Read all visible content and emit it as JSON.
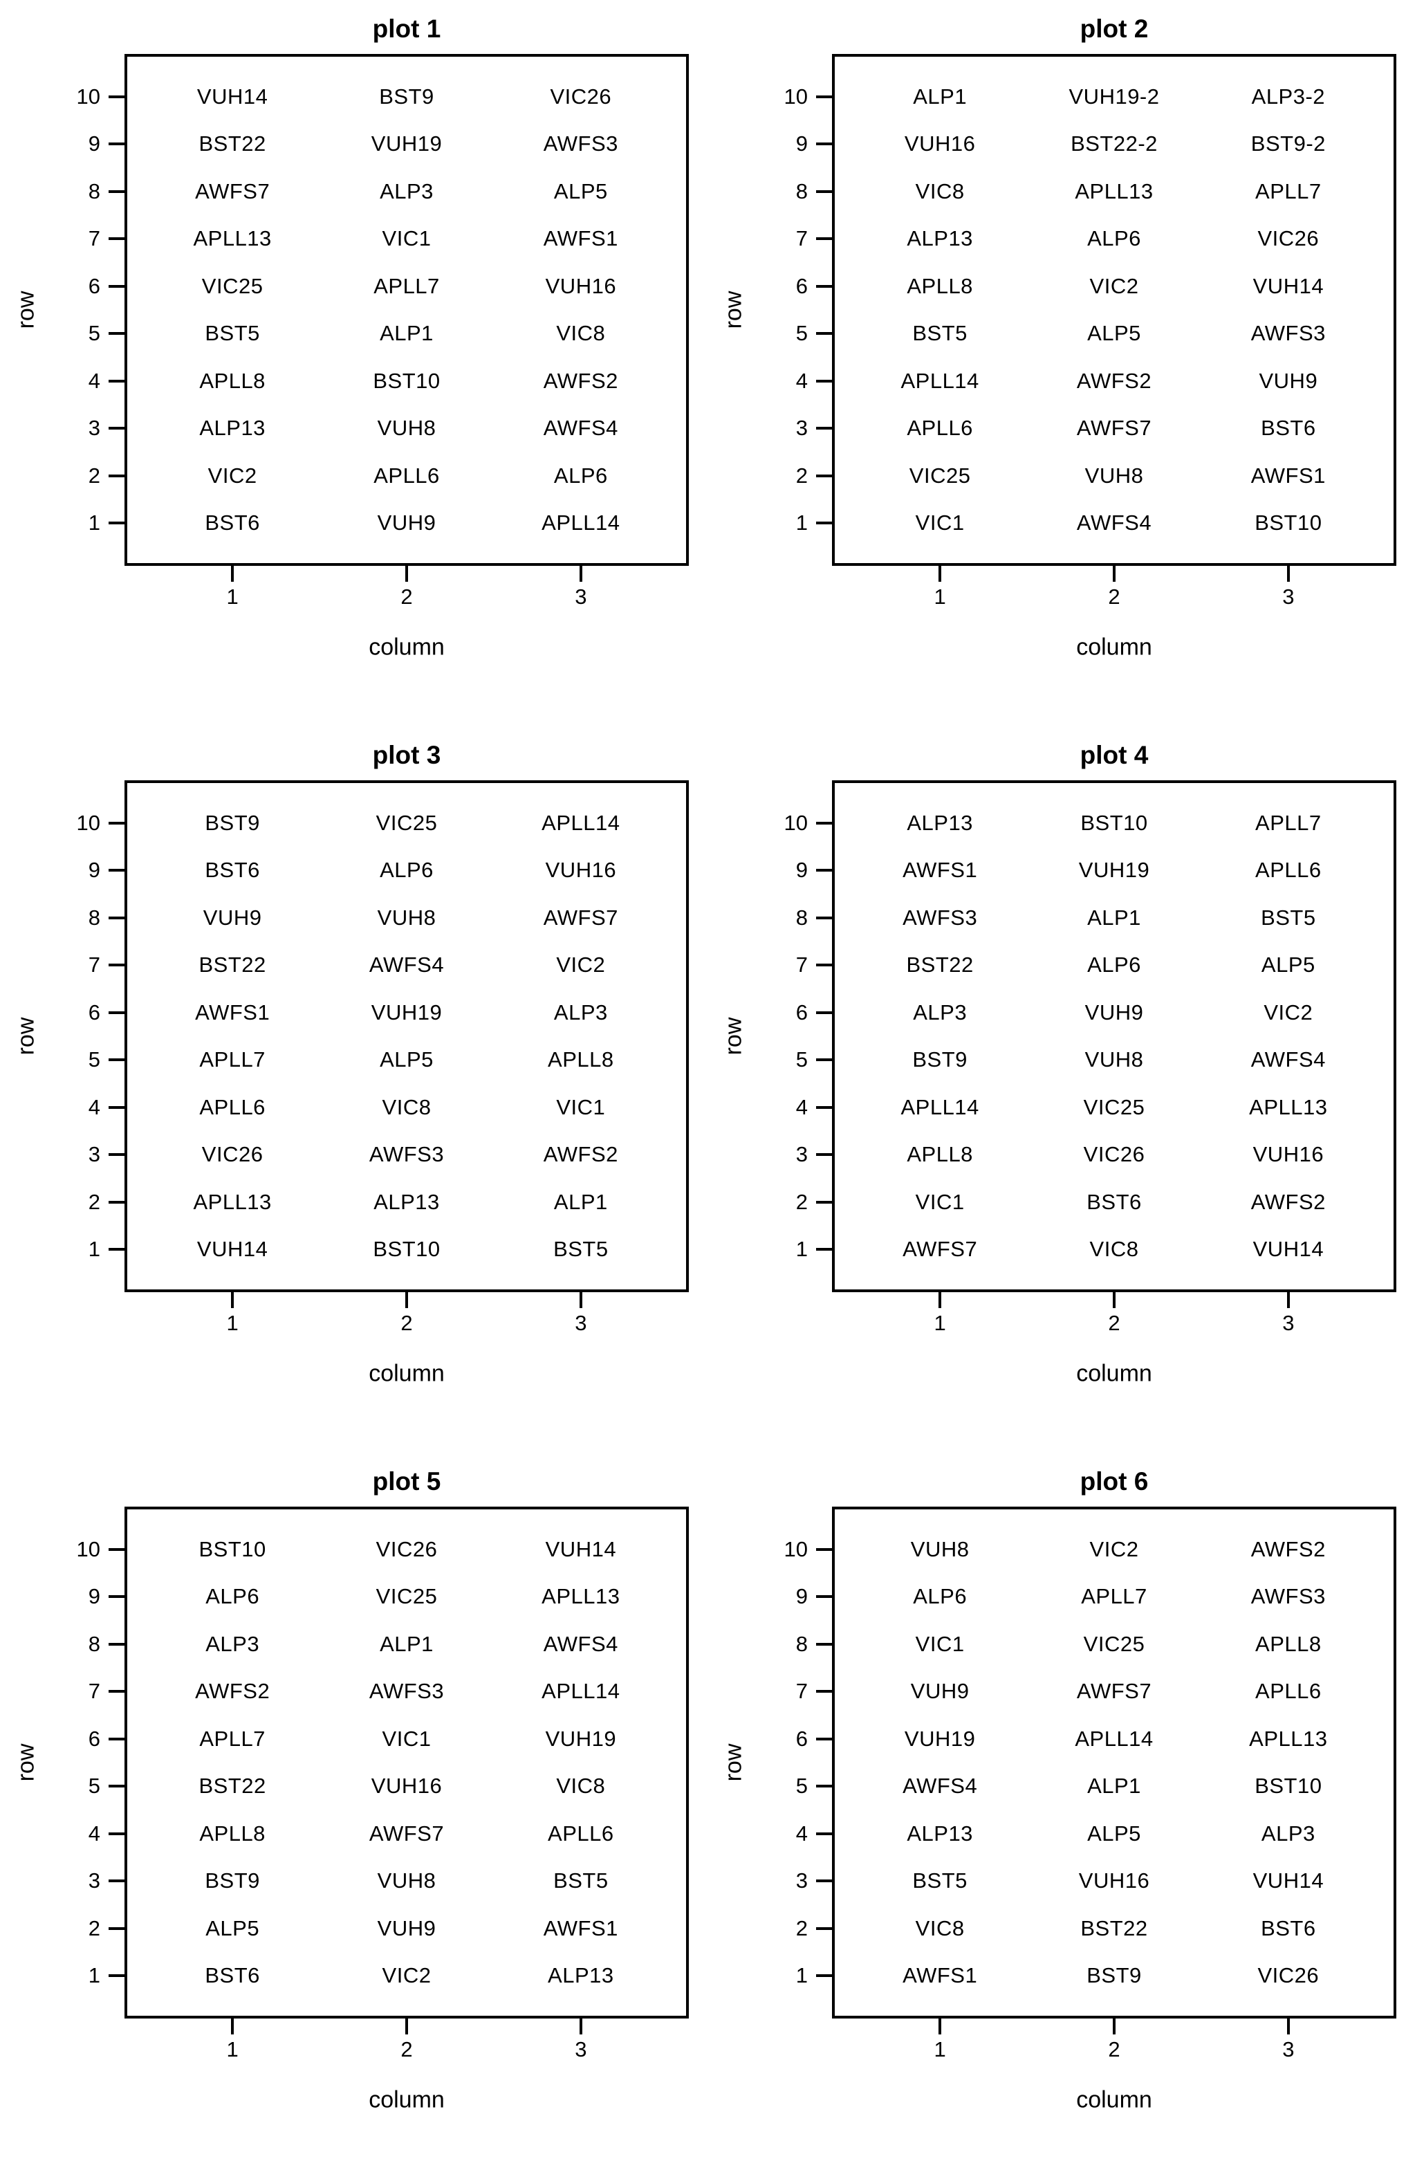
{
  "figure": {
    "background": "#ffffff",
    "text_color": "#000000"
  },
  "axes": {
    "x_label": "column",
    "y_label": "row",
    "x_ticks": [
      "1",
      "2",
      "3"
    ],
    "y_ticks": [
      "1",
      "2",
      "3",
      "4",
      "5",
      "6",
      "7",
      "8",
      "9",
      "10"
    ]
  },
  "chart_data": [
    {
      "type": "scatter",
      "title": "plot 1",
      "xlabel": "column",
      "ylabel": "row",
      "xlim": [
        0.5,
        3.5
      ],
      "ylim": [
        0.5,
        10.5
      ],
      "x_ticks": [
        1,
        2,
        3
      ],
      "y_ticks": [
        1,
        2,
        3,
        4,
        5,
        6,
        7,
        8,
        9,
        10
      ],
      "grid": "off",
      "rows": [
        {
          "row": 10,
          "cells": [
            "VUH14",
            "BST9",
            "VIC26"
          ]
        },
        {
          "row": 9,
          "cells": [
            "BST22",
            "VUH19",
            "AWFS3"
          ]
        },
        {
          "row": 8,
          "cells": [
            "AWFS7",
            "ALP3",
            "ALP5"
          ]
        },
        {
          "row": 7,
          "cells": [
            "APLL13",
            "VIC1",
            "AWFS1"
          ]
        },
        {
          "row": 6,
          "cells": [
            "VIC25",
            "APLL7",
            "VUH16"
          ]
        },
        {
          "row": 5,
          "cells": [
            "BST5",
            "ALP1",
            "VIC8"
          ]
        },
        {
          "row": 4,
          "cells": [
            "APLL8",
            "BST10",
            "AWFS2"
          ]
        },
        {
          "row": 3,
          "cells": [
            "ALP13",
            "VUH8",
            "AWFS4"
          ]
        },
        {
          "row": 2,
          "cells": [
            "VIC2",
            "APLL6",
            "ALP6"
          ]
        },
        {
          "row": 1,
          "cells": [
            "BST6",
            "VUH9",
            "APLL14"
          ]
        }
      ]
    },
    {
      "type": "scatter",
      "title": "plot 2",
      "xlabel": "column",
      "ylabel": "row",
      "xlim": [
        0.5,
        3.5
      ],
      "ylim": [
        0.5,
        10.5
      ],
      "x_ticks": [
        1,
        2,
        3
      ],
      "y_ticks": [
        1,
        2,
        3,
        4,
        5,
        6,
        7,
        8,
        9,
        10
      ],
      "grid": "off",
      "rows": [
        {
          "row": 10,
          "cells": [
            "ALP1",
            "VUH19-2",
            "ALP3-2"
          ]
        },
        {
          "row": 9,
          "cells": [
            "VUH16",
            "BST22-2",
            "BST9-2"
          ]
        },
        {
          "row": 8,
          "cells": [
            "VIC8",
            "APLL13",
            "APLL7"
          ]
        },
        {
          "row": 7,
          "cells": [
            "ALP13",
            "ALP6",
            "VIC26"
          ]
        },
        {
          "row": 6,
          "cells": [
            "APLL8",
            "VIC2",
            "VUH14"
          ]
        },
        {
          "row": 5,
          "cells": [
            "BST5",
            "ALP5",
            "AWFS3"
          ]
        },
        {
          "row": 4,
          "cells": [
            "APLL14",
            "AWFS2",
            "VUH9"
          ]
        },
        {
          "row": 3,
          "cells": [
            "APLL6",
            "AWFS7",
            "BST6"
          ]
        },
        {
          "row": 2,
          "cells": [
            "VIC25",
            "VUH8",
            "AWFS1"
          ]
        },
        {
          "row": 1,
          "cells": [
            "VIC1",
            "AWFS4",
            "BST10"
          ]
        }
      ]
    },
    {
      "type": "scatter",
      "title": "plot 3",
      "xlabel": "column",
      "ylabel": "row",
      "xlim": [
        0.5,
        3.5
      ],
      "ylim": [
        0.5,
        10.5
      ],
      "x_ticks": [
        1,
        2,
        3
      ],
      "y_ticks": [
        1,
        2,
        3,
        4,
        5,
        6,
        7,
        8,
        9,
        10
      ],
      "grid": "off",
      "rows": [
        {
          "row": 10,
          "cells": [
            "BST9",
            "VIC25",
            "APLL14"
          ]
        },
        {
          "row": 9,
          "cells": [
            "BST6",
            "ALP6",
            "VUH16"
          ]
        },
        {
          "row": 8,
          "cells": [
            "VUH9",
            "VUH8",
            "AWFS7"
          ]
        },
        {
          "row": 7,
          "cells": [
            "BST22",
            "AWFS4",
            "VIC2"
          ]
        },
        {
          "row": 6,
          "cells": [
            "AWFS1",
            "VUH19",
            "ALP3"
          ]
        },
        {
          "row": 5,
          "cells": [
            "APLL7",
            "ALP5",
            "APLL8"
          ]
        },
        {
          "row": 4,
          "cells": [
            "APLL6",
            "VIC8",
            "VIC1"
          ]
        },
        {
          "row": 3,
          "cells": [
            "VIC26",
            "AWFS3",
            "AWFS2"
          ]
        },
        {
          "row": 2,
          "cells": [
            "APLL13",
            "ALP13",
            "ALP1"
          ]
        },
        {
          "row": 1,
          "cells": [
            "VUH14",
            "BST10",
            "BST5"
          ]
        }
      ]
    },
    {
      "type": "scatter",
      "title": "plot 4",
      "xlabel": "column",
      "ylabel": "row",
      "xlim": [
        0.5,
        3.5
      ],
      "ylim": [
        0.5,
        10.5
      ],
      "x_ticks": [
        1,
        2,
        3
      ],
      "y_ticks": [
        1,
        2,
        3,
        4,
        5,
        6,
        7,
        8,
        9,
        10
      ],
      "grid": "off",
      "rows": [
        {
          "row": 10,
          "cells": [
            "ALP13",
            "BST10",
            "APLL7"
          ]
        },
        {
          "row": 9,
          "cells": [
            "AWFS1",
            "VUH19",
            "APLL6"
          ]
        },
        {
          "row": 8,
          "cells": [
            "AWFS3",
            "ALP1",
            "BST5"
          ]
        },
        {
          "row": 7,
          "cells": [
            "BST22",
            "ALP6",
            "ALP5"
          ]
        },
        {
          "row": 6,
          "cells": [
            "ALP3",
            "VUH9",
            "VIC2"
          ]
        },
        {
          "row": 5,
          "cells": [
            "BST9",
            "VUH8",
            "AWFS4"
          ]
        },
        {
          "row": 4,
          "cells": [
            "APLL14",
            "VIC25",
            "APLL13"
          ]
        },
        {
          "row": 3,
          "cells": [
            "APLL8",
            "VIC26",
            "VUH16"
          ]
        },
        {
          "row": 2,
          "cells": [
            "VIC1",
            "BST6",
            "AWFS2"
          ]
        },
        {
          "row": 1,
          "cells": [
            "AWFS7",
            "VIC8",
            "VUH14"
          ]
        }
      ]
    },
    {
      "type": "scatter",
      "title": "plot 5",
      "xlabel": "column",
      "ylabel": "row",
      "xlim": [
        0.5,
        3.5
      ],
      "ylim": [
        0.5,
        10.5
      ],
      "x_ticks": [
        1,
        2,
        3
      ],
      "y_ticks": [
        1,
        2,
        3,
        4,
        5,
        6,
        7,
        8,
        9,
        10
      ],
      "grid": "off",
      "rows": [
        {
          "row": 10,
          "cells": [
            "BST10",
            "VIC26",
            "VUH14"
          ]
        },
        {
          "row": 9,
          "cells": [
            "ALP6",
            "VIC25",
            "APLL13"
          ]
        },
        {
          "row": 8,
          "cells": [
            "ALP3",
            "ALP1",
            "AWFS4"
          ]
        },
        {
          "row": 7,
          "cells": [
            "AWFS2",
            "AWFS3",
            "APLL14"
          ]
        },
        {
          "row": 6,
          "cells": [
            "APLL7",
            "VIC1",
            "VUH19"
          ]
        },
        {
          "row": 5,
          "cells": [
            "BST22",
            "VUH16",
            "VIC8"
          ]
        },
        {
          "row": 4,
          "cells": [
            "APLL8",
            "AWFS7",
            "APLL6"
          ]
        },
        {
          "row": 3,
          "cells": [
            "BST9",
            "VUH8",
            "BST5"
          ]
        },
        {
          "row": 2,
          "cells": [
            "ALP5",
            "VUH9",
            "AWFS1"
          ]
        },
        {
          "row": 1,
          "cells": [
            "BST6",
            "VIC2",
            "ALP13"
          ]
        }
      ]
    },
    {
      "type": "scatter",
      "title": "plot 6",
      "xlabel": "column",
      "ylabel": "row",
      "xlim": [
        0.5,
        3.5
      ],
      "ylim": [
        0.5,
        10.5
      ],
      "x_ticks": [
        1,
        2,
        3
      ],
      "y_ticks": [
        1,
        2,
        3,
        4,
        5,
        6,
        7,
        8,
        9,
        10
      ],
      "grid": "off",
      "rows": [
        {
          "row": 10,
          "cells": [
            "VUH8",
            "VIC2",
            "AWFS2"
          ]
        },
        {
          "row": 9,
          "cells": [
            "ALP6",
            "APLL7",
            "AWFS3"
          ]
        },
        {
          "row": 8,
          "cells": [
            "VIC1",
            "VIC25",
            "APLL8"
          ]
        },
        {
          "row": 7,
          "cells": [
            "VUH9",
            "AWFS7",
            "APLL6"
          ]
        },
        {
          "row": 6,
          "cells": [
            "VUH19",
            "APLL14",
            "APLL13"
          ]
        },
        {
          "row": 5,
          "cells": [
            "AWFS4",
            "ALP1",
            "BST10"
          ]
        },
        {
          "row": 4,
          "cells": [
            "ALP13",
            "ALP5",
            "ALP3"
          ]
        },
        {
          "row": 3,
          "cells": [
            "BST5",
            "VUH16",
            "VUH14"
          ]
        },
        {
          "row": 2,
          "cells": [
            "VIC8",
            "BST22",
            "BST6"
          ]
        },
        {
          "row": 1,
          "cells": [
            "AWFS1",
            "BST9",
            "VIC26"
          ]
        }
      ]
    }
  ]
}
